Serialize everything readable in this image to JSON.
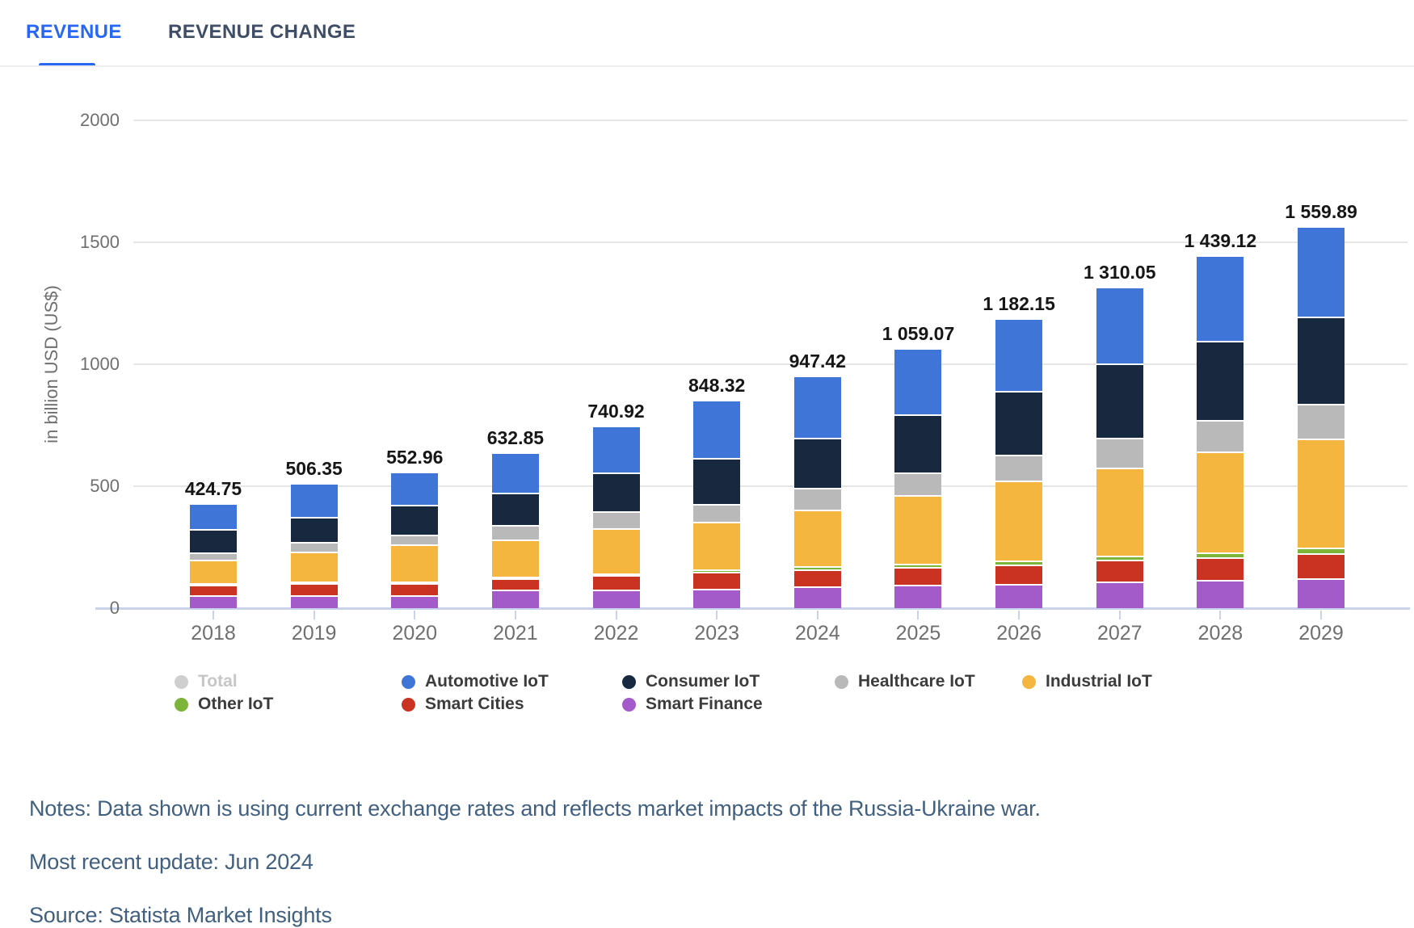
{
  "tabs": {
    "revenue": "REVENUE",
    "revenue_change": "REVENUE CHANGE"
  },
  "chart_data": {
    "type": "bar",
    "stacked": true,
    "title": "",
    "ylabel": "in billion USD (US$)",
    "ylim": [
      0,
      2000
    ],
    "yticks": [
      0,
      500,
      1000,
      1500,
      2000
    ],
    "grid": "horizontal",
    "legend_position": "bottom",
    "categories": [
      "2018",
      "2019",
      "2020",
      "2021",
      "2022",
      "2023",
      "2024",
      "2025",
      "2026",
      "2027",
      "2028",
      "2029"
    ],
    "totals": [
      424.75,
      506.35,
      552.96,
      632.85,
      740.92,
      848.32,
      947.42,
      1059.07,
      1182.15,
      1310.05,
      1439.12,
      1559.89
    ],
    "totals_formatted": [
      "424.75",
      "506.35",
      "552.96",
      "632.85",
      "740.92",
      "848.32",
      "947.42",
      "1 059.07",
      "1 182.15",
      "1 310.05",
      "1 439.12",
      "1 559.89"
    ],
    "series_note": "values estimated from bar segment heights; stacked bottom-to-top",
    "series": [
      {
        "name": "Smart Finance",
        "color": "#a35bc9",
        "values": [
          46.25,
          47.35,
          47.96,
          69.85,
          70.42,
          72.82,
          83.42,
          89.57,
          92.65,
          101.55,
          109.62,
          116.39
        ]
      },
      {
        "name": "Smart Cities",
        "color": "#ca3322",
        "values": [
          43.5,
          48.5,
          50,
          46.5,
          60,
          70,
          70.5,
          73.5,
          80,
          90,
          92.5,
          103
        ]
      },
      {
        "name": "Other IoT",
        "color": "#7db53a",
        "values": [
          1.5,
          2,
          2.5,
          4,
          5.5,
          8,
          11,
          13,
          15,
          17,
          19,
          21
        ]
      },
      {
        "name": "Industrial IoT",
        "color": "#f4b63e",
        "values": [
          96.5,
          126,
          152,
          154.5,
          183,
          198,
          234,
          281,
          328,
          362,
          414,
          448.5
        ]
      },
      {
        "name": "Healthcare IoT",
        "color": "#b9b9b9",
        "values": [
          32,
          37.5,
          40,
          59,
          70,
          71.5,
          87,
          92,
          106.5,
          122.5,
          129,
          143
        ]
      },
      {
        "name": "Consumer IoT",
        "color": "#17283f",
        "values": [
          97,
          106,
          122.5,
          132,
          159,
          190,
          206.5,
          240,
          263.5,
          304.5,
          326,
          357
        ]
      },
      {
        "name": "Automotive IoT",
        "color": "#3e75d7",
        "values": [
          108,
          139,
          138,
          167,
          193,
          238,
          255,
          270,
          296.5,
          312.5,
          349,
          371
        ]
      }
    ],
    "legend": [
      {
        "label": "Total",
        "color": "#cfcfcf",
        "disabled": true
      },
      {
        "label": "Automotive IoT",
        "color": "#3e75d7",
        "disabled": false
      },
      {
        "label": "Consumer IoT",
        "color": "#17283f",
        "disabled": false
      },
      {
        "label": "Healthcare IoT",
        "color": "#b9b9b9",
        "disabled": false
      },
      {
        "label": "Industrial IoT",
        "color": "#f4b63e",
        "disabled": false
      },
      {
        "label": "Other IoT",
        "color": "#7db53a",
        "disabled": false
      },
      {
        "label": "Smart Cities",
        "color": "#ca3322",
        "disabled": false
      },
      {
        "label": "Smart Finance",
        "color": "#a35bc9",
        "disabled": false
      }
    ]
  },
  "notes": {
    "line1": "Notes: Data shown is using current exchange rates and reflects market impacts of the Russia-Ukraine war.",
    "line2": "Most recent update: Jun 2024",
    "line3": "Source: Statista Market Insights"
  }
}
